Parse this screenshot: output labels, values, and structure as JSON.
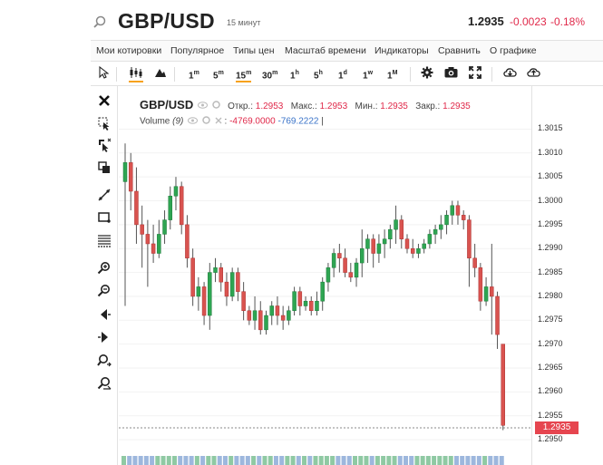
{
  "header": {
    "symbol": "GBP/USD",
    "interval_label": "15 минут",
    "last_price": "1.2935",
    "change": "-0.0023",
    "change_pct": "-0.18%"
  },
  "menu": {
    "items": [
      "Мои котировки",
      "Популярное",
      "Типы цен",
      "Масштаб времени",
      "Индикаторы",
      "Сравнить",
      "О графике"
    ]
  },
  "toolbar": {
    "intervals": [
      {
        "num": "1",
        "unit": "m"
      },
      {
        "num": "5",
        "unit": "m"
      },
      {
        "num": "15",
        "unit": "m"
      },
      {
        "num": "30",
        "unit": "m"
      },
      {
        "num": "1",
        "unit": "h"
      },
      {
        "num": "5",
        "unit": "h"
      },
      {
        "num": "1",
        "unit": "d"
      },
      {
        "num": "1",
        "unit": "w"
      },
      {
        "num": "1",
        "unit": "M"
      }
    ],
    "active_interval": "15m",
    "icons": [
      "cursor-icon",
      "candles-icon",
      "mountain-icon",
      "gear-icon",
      "camera-icon",
      "fullscreen-icon",
      "download-icon",
      "upload-icon"
    ]
  },
  "legend": {
    "symbol": "GBP/USD",
    "open_label": "Откр.:",
    "open": "1.2953",
    "high_label": "Макс.:",
    "high": "1.2953",
    "low_label": "Мин.:",
    "low": "1.2935",
    "close_label": "Закр.:",
    "close": "1.2935",
    "volume_label": "Volume",
    "volume_param": "(9)",
    "volume_value1": "-4769.0000",
    "volume_value2": "-769.2222"
  },
  "price_axis": {
    "ticks": [
      "1.3015",
      "1.3010",
      "1.3005",
      "1.3000",
      "1.2995",
      "1.2990",
      "1.2985",
      "1.2980",
      "1.2975",
      "1.2970",
      "1.2965",
      "1.2960",
      "1.2955",
      "1.2950"
    ],
    "last_price_label": "1.2935"
  },
  "colors": {
    "up": "#2ea552",
    "down": "#d9534f",
    "accent": "#f7a21b",
    "negative": "#e0294a"
  },
  "chart_data": {
    "type": "candlestick",
    "ylim": [
      1.29485,
      1.30185
    ],
    "ticks": [
      1.3015,
      1.301,
      1.3005,
      1.3,
      1.2995,
      1.299,
      1.2985,
      1.298,
      1.2975,
      1.297,
      1.2965,
      1.296,
      1.2955,
      1.295
    ],
    "last_price": 1.2935,
    "candles": [
      {
        "o": 1.3004,
        "h": 1.3012,
        "c": 1.3008,
        "l": 1.2978
      },
      {
        "o": 1.3008,
        "h": 1.301,
        "c": 1.3002,
        "l": 1.2998
      },
      {
        "o": 1.3002,
        "h": 1.3007,
        "c": 1.2995,
        "l": 1.2991
      },
      {
        "o": 1.2995,
        "h": 1.2999,
        "c": 1.2993,
        "l": 1.2986
      },
      {
        "o": 1.2993,
        "h": 1.2996,
        "c": 1.2991,
        "l": 1.2982
      },
      {
        "o": 1.2991,
        "h": 1.2995,
        "c": 1.2989,
        "l": 1.2987
      },
      {
        "o": 1.2989,
        "h": 1.2996,
        "c": 1.2993,
        "l": 1.2988
      },
      {
        "o": 1.2993,
        "h": 1.2998,
        "c": 1.2996,
        "l": 1.2991
      },
      {
        "o": 1.2996,
        "h": 1.3003,
        "c": 1.3001,
        "l": 1.2994
      },
      {
        "o": 1.3001,
        "h": 1.3005,
        "c": 1.3003,
        "l": 1.2998
      },
      {
        "o": 1.3003,
        "h": 1.3004,
        "c": 1.2995,
        "l": 1.2993
      },
      {
        "o": 1.2995,
        "h": 1.2997,
        "c": 1.2988,
        "l": 1.2986
      },
      {
        "o": 1.2988,
        "h": 1.299,
        "c": 1.298,
        "l": 1.2978
      },
      {
        "o": 1.298,
        "h": 1.2984,
        "c": 1.2982,
        "l": 1.2977
      },
      {
        "o": 1.2982,
        "h": 1.2983,
        "c": 1.2976,
        "l": 1.2974
      },
      {
        "o": 1.2976,
        "h": 1.2987,
        "c": 1.2985,
        "l": 1.2973
      },
      {
        "o": 1.2985,
        "h": 1.2988,
        "c": 1.2986,
        "l": 1.2983
      },
      {
        "o": 1.2986,
        "h": 1.2987,
        "c": 1.2983,
        "l": 1.2981
      },
      {
        "o": 1.2983,
        "h": 1.2985,
        "c": 1.298,
        "l": 1.2978
      },
      {
        "o": 1.298,
        "h": 1.2986,
        "c": 1.2985,
        "l": 1.2979
      },
      {
        "o": 1.2985,
        "h": 1.2986,
        "c": 1.2981,
        "l": 1.2979
      },
      {
        "o": 1.2981,
        "h": 1.2983,
        "c": 1.2977,
        "l": 1.2975
      },
      {
        "o": 1.2977,
        "h": 1.2978,
        "c": 1.2975,
        "l": 1.2974
      },
      {
        "o": 1.2975,
        "h": 1.298,
        "c": 1.2977,
        "l": 1.2973
      },
      {
        "o": 1.2977,
        "h": 1.2979,
        "c": 1.2973,
        "l": 1.2972
      },
      {
        "o": 1.2973,
        "h": 1.2977,
        "c": 1.2976,
        "l": 1.2972
      },
      {
        "o": 1.2976,
        "h": 1.2979,
        "c": 1.2978,
        "l": 1.2974
      },
      {
        "o": 1.2978,
        "h": 1.298,
        "c": 1.2976,
        "l": 1.2974
      },
      {
        "o": 1.2976,
        "h": 1.2978,
        "c": 1.2975,
        "l": 1.2973
      },
      {
        "o": 1.2975,
        "h": 1.2978,
        "c": 1.2977,
        "l": 1.2974
      },
      {
        "o": 1.2977,
        "h": 1.2982,
        "c": 1.2981,
        "l": 1.2976
      },
      {
        "o": 1.2981,
        "h": 1.2982,
        "c": 1.2978,
        "l": 1.2976
      },
      {
        "o": 1.2978,
        "h": 1.298,
        "c": 1.2979,
        "l": 1.2977
      },
      {
        "o": 1.2979,
        "h": 1.298,
        "c": 1.2977,
        "l": 1.2976
      },
      {
        "o": 1.2977,
        "h": 1.2981,
        "c": 1.2979,
        "l": 1.2976
      },
      {
        "o": 1.2979,
        "h": 1.2984,
        "c": 1.2983,
        "l": 1.2977
      },
      {
        "o": 1.2983,
        "h": 1.2987,
        "c": 1.2986,
        "l": 1.2981
      },
      {
        "o": 1.2986,
        "h": 1.299,
        "c": 1.2989,
        "l": 1.2984
      },
      {
        "o": 1.2989,
        "h": 1.2991,
        "c": 1.2988,
        "l": 1.2985
      },
      {
        "o": 1.2988,
        "h": 1.299,
        "c": 1.2985,
        "l": 1.2984
      },
      {
        "o": 1.2985,
        "h": 1.2987,
        "c": 1.2984,
        "l": 1.2983
      },
      {
        "o": 1.2984,
        "h": 1.2988,
        "c": 1.2987,
        "l": 1.2982
      },
      {
        "o": 1.2987,
        "h": 1.2994,
        "c": 1.299,
        "l": 1.2984
      },
      {
        "o": 1.299,
        "h": 1.2993,
        "c": 1.2992,
        "l": 1.2987
      },
      {
        "o": 1.2992,
        "h": 1.2993,
        "c": 1.2989,
        "l": 1.2986
      },
      {
        "o": 1.2989,
        "h": 1.2993,
        "c": 1.2991,
        "l": 1.2987
      },
      {
        "o": 1.2991,
        "h": 1.2994,
        "c": 1.2992,
        "l": 1.2988
      },
      {
        "o": 1.2992,
        "h": 1.2995,
        "c": 1.2994,
        "l": 1.299
      },
      {
        "o": 1.2994,
        "h": 1.2999,
        "c": 1.2996,
        "l": 1.2991
      },
      {
        "o": 1.2996,
        "h": 1.2997,
        "c": 1.2992,
        "l": 1.299
      },
      {
        "o": 1.2992,
        "h": 1.2993,
        "c": 1.299,
        "l": 1.2989
      },
      {
        "o": 1.299,
        "h": 1.2992,
        "c": 1.2989,
        "l": 1.2988
      },
      {
        "o": 1.2989,
        "h": 1.2991,
        "c": 1.299,
        "l": 1.2988
      },
      {
        "o": 1.299,
        "h": 1.2992,
        "c": 1.2991,
        "l": 1.2989
      },
      {
        "o": 1.2991,
        "h": 1.2994,
        "c": 1.2993,
        "l": 1.299
      },
      {
        "o": 1.2993,
        "h": 1.2995,
        "c": 1.2994,
        "l": 1.2991
      },
      {
        "o": 1.2994,
        "h": 1.2997,
        "c": 1.2995,
        "l": 1.2992
      },
      {
        "o": 1.2995,
        "h": 1.2998,
        "c": 1.2997,
        "l": 1.2993
      },
      {
        "o": 1.2997,
        "h": 1.3,
        "c": 1.2999,
        "l": 1.2995
      },
      {
        "o": 1.2999,
        "h": 1.3,
        "c": 1.2997,
        "l": 1.2995
      },
      {
        "o": 1.2997,
        "h": 1.2998,
        "c": 1.2996,
        "l": 1.2994
      },
      {
        "o": 1.2996,
        "h": 1.2997,
        "c": 1.2988,
        "l": 1.2982
      },
      {
        "o": 1.2988,
        "h": 1.2991,
        "c": 1.2986,
        "l": 1.2984
      },
      {
        "o": 1.2986,
        "h": 1.2987,
        "c": 1.2979,
        "l": 1.2977
      },
      {
        "o": 1.2979,
        "h": 1.2984,
        "c": 1.2982,
        "l": 1.2978
      },
      {
        "o": 1.2982,
        "h": 1.2991,
        "c": 1.298,
        "l": 1.2972
      },
      {
        "o": 1.298,
        "h": 1.2981,
        "c": 1.2972,
        "l": 1.2969
      },
      {
        "o": 1.297,
        "h": 1.297,
        "c": 1.2953,
        "l": 1.2952
      }
    ],
    "volume_panel": "bars-partially-visible"
  }
}
